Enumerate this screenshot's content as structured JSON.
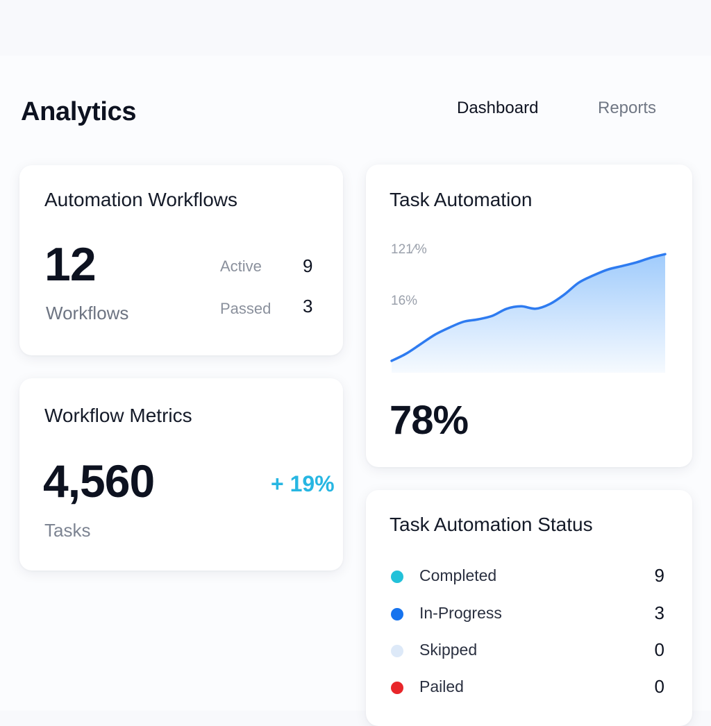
{
  "header": {
    "title": "Analytics",
    "nav": [
      "Dashboard",
      "Reports"
    ]
  },
  "automation_workflows": {
    "title": "Automation Workflows",
    "count": "12",
    "count_label": "Workflows",
    "stats": [
      {
        "label": "Active",
        "value": "9"
      },
      {
        "label": "Passed",
        "value": "3"
      }
    ]
  },
  "workflow_metrics": {
    "title": "Workflow Metrics",
    "count": "4,560",
    "count_label": "Tasks",
    "delta": "+ 19%",
    "delta_color": "#27b6e2"
  },
  "task_automation": {
    "title": "Task Automation",
    "value": "78%",
    "chart_data": {
      "type": "area",
      "y_tick_labels": [
        "121⁄%",
        "16%"
      ],
      "values": [
        10,
        16,
        24,
        32,
        38,
        43,
        45,
        48,
        54,
        56,
        54,
        58,
        66,
        76,
        82,
        87,
        90,
        93,
        97,
        100
      ],
      "ylim": [
        0,
        120
      ],
      "line_color": "#2e7bf0",
      "fill_color": "#8fc2fb",
      "grid": false,
      "legend": false
    }
  },
  "task_status": {
    "title": "Task Automation Status",
    "items": [
      {
        "label": "Completed",
        "value": "9",
        "color": "#22c1d9"
      },
      {
        "label": "In-Progress",
        "value": "3",
        "color": "#1673ee"
      },
      {
        "label": "Skipped",
        "value": "0",
        "color": "#dde9f8"
      },
      {
        "label": "Pailed",
        "value": "0",
        "color": "#e8262a"
      }
    ]
  }
}
